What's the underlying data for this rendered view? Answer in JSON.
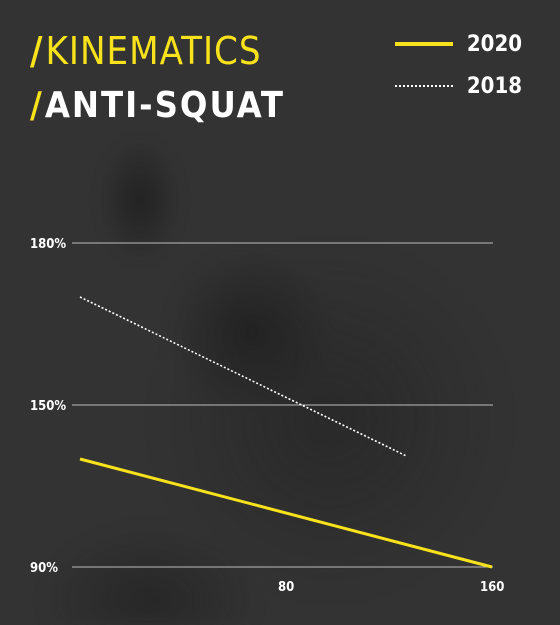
{
  "header": {
    "title_slash": "/",
    "title_line1": "KINEMATICS",
    "title_line2": "ANTI-SQUAT"
  },
  "chart_data": {
    "type": "line",
    "xlim": [
      0,
      160
    ],
    "ylim": [
      90,
      180
    ],
    "x_ticks": [
      80,
      160
    ],
    "x_tick_labels": [
      "80",
      "160"
    ],
    "y_ticks": [
      90,
      150,
      180
    ],
    "y_tick_labels": [
      "90%",
      "150%",
      "180%"
    ],
    "grid": true,
    "legend_position": "top-right",
    "series": [
      {
        "name": "2020",
        "style": "solid",
        "color": "#f7e21b",
        "x": [
          0,
          160
        ],
        "y": [
          130,
          90
        ]
      },
      {
        "name": "2018",
        "style": "dotted",
        "color": "#ffffff",
        "x": [
          0,
          127
        ],
        "y": [
          170,
          131
        ]
      }
    ]
  }
}
